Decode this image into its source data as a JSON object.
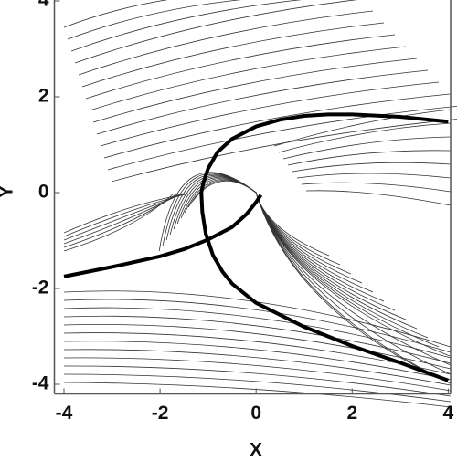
{
  "chart_data": {
    "type": "line",
    "x_label": "X",
    "y_label": "Y",
    "xlim": [
      -4.2,
      4.05
    ],
    "ylim": [
      -4.2,
      4.2
    ],
    "xticks": [
      -4,
      -2,
      0,
      2,
      4
    ],
    "yticks": [
      -4,
      -2,
      0,
      2,
      4
    ],
    "series": [
      {
        "color": "#000000",
        "x": [
          4,
          3,
          2,
          1.5,
          1,
          0.5,
          0,
          -0.5,
          -0.8,
          -1,
          -1.1,
          -1.14,
          -1.12,
          -1.05,
          -0.9,
          -0.7,
          -0.5,
          0,
          1,
          2,
          3,
          4
        ],
        "values": [
          1.48,
          1.58,
          1.63,
          1.63,
          1.6,
          1.52,
          1.38,
          1.12,
          0.85,
          0.5,
          0.2,
          0,
          -0.4,
          -0.85,
          -1.3,
          -1.65,
          -1.9,
          -2.3,
          -2.8,
          -3.2,
          -3.55,
          -3.92
        ]
      },
      {
        "color": "#000000",
        "x": [
          -4,
          -3,
          -2,
          -1.5,
          -1,
          -0.5,
          -0.2,
          0,
          0.1
        ],
        "values": [
          -1.75,
          -1.55,
          -1.33,
          -1.18,
          -0.98,
          -0.72,
          -0.45,
          -0.2,
          -0.05
        ]
      }
    ]
  }
}
